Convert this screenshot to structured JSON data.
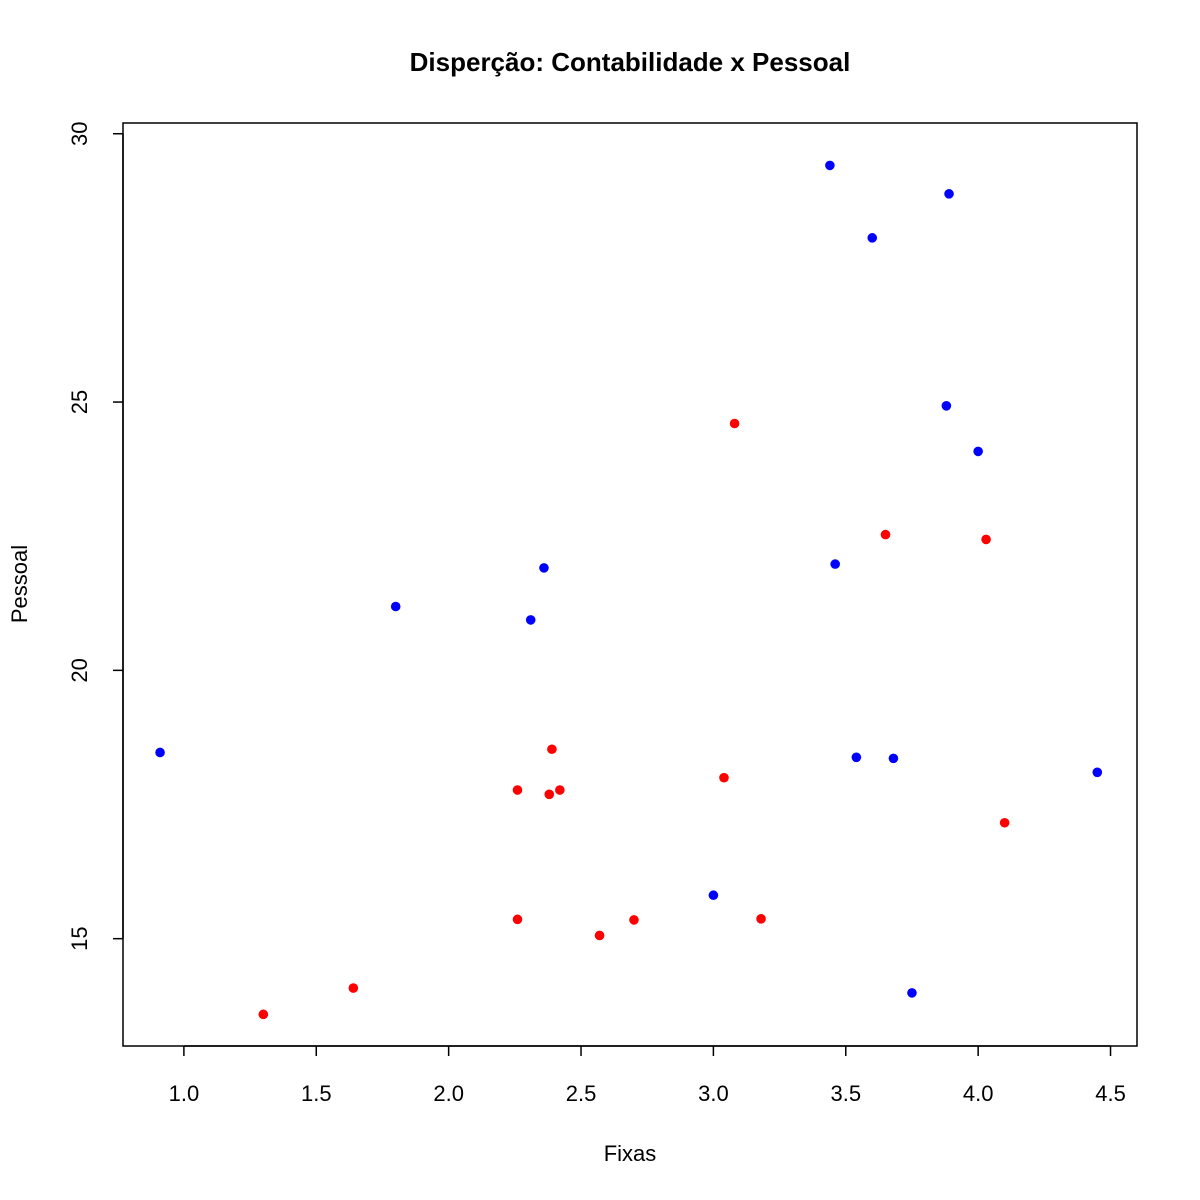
{
  "chart_data": {
    "type": "scatter",
    "title": "Disperção: Contabilidade x Pessoal",
    "xlabel": "Fixas",
    "ylabel": "Pessoal",
    "xlim": [
      0.77,
      4.6
    ],
    "ylim": [
      13.0,
      30.2
    ],
    "x_ticks": [
      1.0,
      1.5,
      2.0,
      2.5,
      3.0,
      3.5,
      4.0,
      4.5
    ],
    "x_tick_labels": [
      "1.0",
      "1.5",
      "2.0",
      "2.5",
      "3.0",
      "3.5",
      "4.0",
      "4.5"
    ],
    "y_ticks": [
      15,
      20,
      25,
      30
    ],
    "y_tick_labels": [
      "15",
      "20",
      "25",
      "30"
    ],
    "grid": false,
    "series": [
      {
        "color": "#0000ff",
        "points": [
          {
            "x": 0.91,
            "y": 18.47
          },
          {
            "x": 1.8,
            "y": 21.19
          },
          {
            "x": 2.31,
            "y": 20.94
          },
          {
            "x": 2.36,
            "y": 21.91
          },
          {
            "x": 3.0,
            "y": 15.81
          },
          {
            "x": 3.44,
            "y": 29.41
          },
          {
            "x": 3.46,
            "y": 21.98
          },
          {
            "x": 3.54,
            "y": 18.38
          },
          {
            "x": 3.6,
            "y": 28.06
          },
          {
            "x": 3.68,
            "y": 18.36
          },
          {
            "x": 3.75,
            "y": 13.99
          },
          {
            "x": 3.88,
            "y": 24.93
          },
          {
            "x": 3.89,
            "y": 28.88
          },
          {
            "x": 4.0,
            "y": 24.08
          },
          {
            "x": 4.45,
            "y": 18.1
          }
        ]
      },
      {
        "color": "#ff0000",
        "points": [
          {
            "x": 1.3,
            "y": 13.59
          },
          {
            "x": 1.64,
            "y": 14.08
          },
          {
            "x": 2.26,
            "y": 17.77
          },
          {
            "x": 2.26,
            "y": 15.36
          },
          {
            "x": 2.38,
            "y": 17.69
          },
          {
            "x": 2.39,
            "y": 18.53
          },
          {
            "x": 2.42,
            "y": 17.77
          },
          {
            "x": 2.57,
            "y": 15.06
          },
          {
            "x": 2.7,
            "y": 15.35
          },
          {
            "x": 3.04,
            "y": 18.0
          },
          {
            "x": 3.08,
            "y": 24.6
          },
          {
            "x": 3.18,
            "y": 15.37
          },
          {
            "x": 3.65,
            "y": 22.53
          },
          {
            "x": 4.03,
            "y": 22.44
          },
          {
            "x": 4.1,
            "y": 17.16
          }
        ]
      }
    ]
  }
}
